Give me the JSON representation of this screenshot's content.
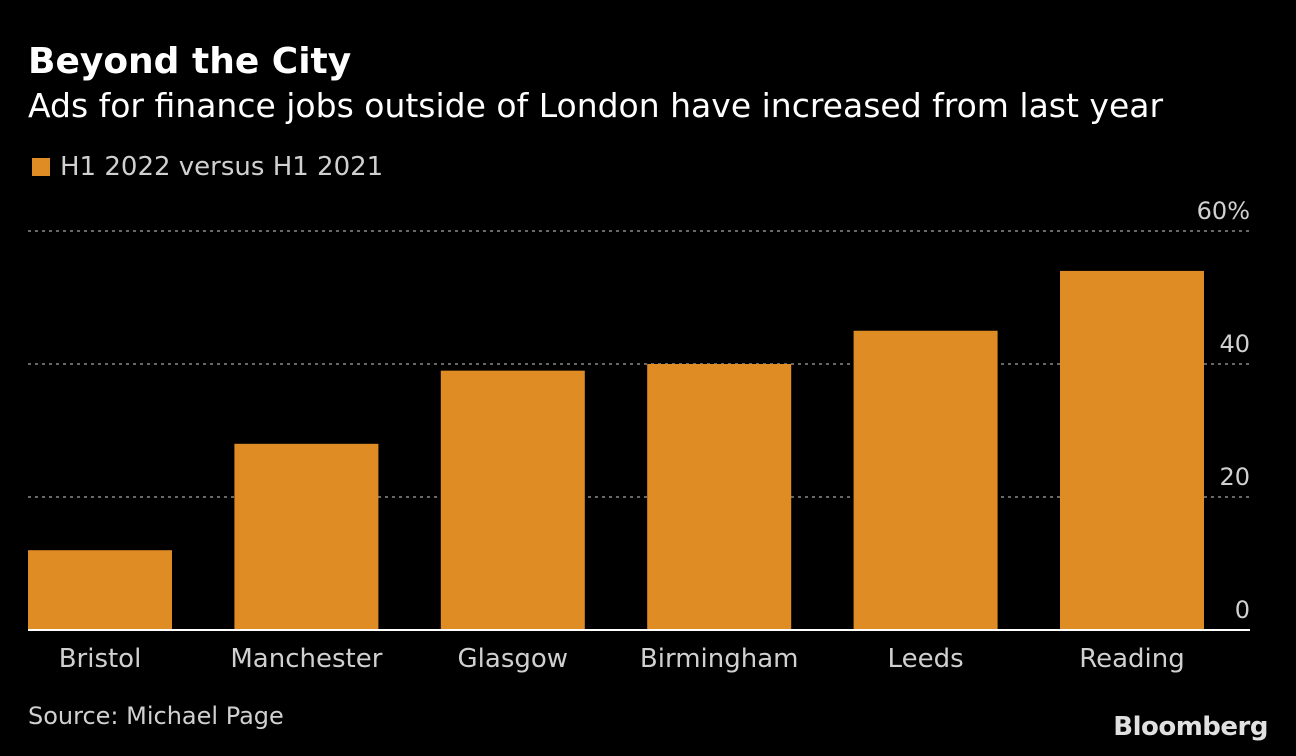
{
  "title": "Beyond the City",
  "subtitle": "Ads for finance jobs outside of London have increased from last year",
  "legend": {
    "label": "H1 2022 versus H1 2021",
    "color": "#e08c25"
  },
  "source": "Source: Michael Page",
  "brand": "Bloomberg",
  "chart_data": {
    "type": "bar",
    "categories": [
      "Bristol",
      "Manchester",
      "Glasgow",
      "Birmingham",
      "Leeds",
      "Reading"
    ],
    "series": [
      {
        "name": "H1 2022 versus H1 2021",
        "values": [
          12,
          28,
          39,
          40,
          45,
          54
        ],
        "color": "#e08c25"
      }
    ],
    "yticks": [
      {
        "value": 0,
        "label": "0"
      },
      {
        "value": 20,
        "label": "20"
      },
      {
        "value": 40,
        "label": "40"
      },
      {
        "value": 60,
        "label": "60%"
      }
    ],
    "ylim": [
      0,
      60
    ],
    "grid": true,
    "y_axis_side": "right",
    "legend_position": "top-left",
    "title": "Beyond the City",
    "subtitle": "Ads for finance jobs outside of London have increased from last year"
  }
}
